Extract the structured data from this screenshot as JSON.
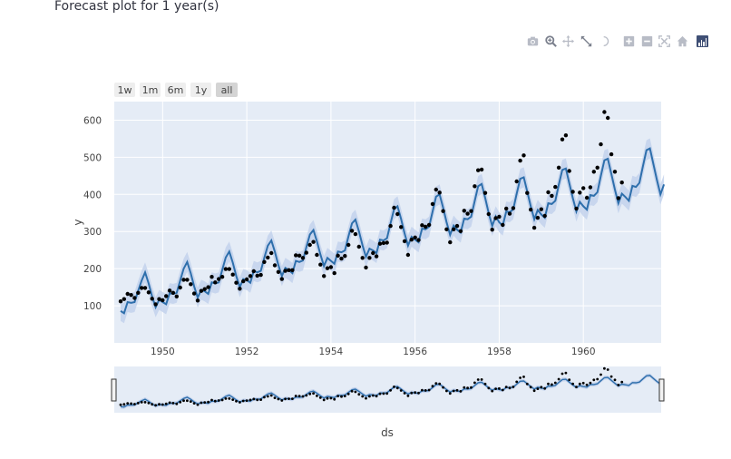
{
  "page": {
    "title": "Forecast plot for 1 year(s)"
  },
  "modebar": {
    "buttons": [
      "camera-icon",
      "zoom-icon",
      "pan-icon",
      "box-select-icon",
      "lasso-icon",
      "zoom-in-icon",
      "zoom-out-icon",
      "autoscale-icon",
      "home-icon"
    ],
    "logo": "plotly-logo-icon"
  },
  "range_selector": {
    "buttons": [
      {
        "label": "1w",
        "active": false
      },
      {
        "label": "1m",
        "active": false
      },
      {
        "label": "6m",
        "active": false
      },
      {
        "label": "1y",
        "active": false
      },
      {
        "label": "all",
        "active": true
      }
    ]
  },
  "colors": {
    "plot_bg": "#e5ecf6",
    "line": "#2e6fac",
    "band": "#c3d2ec",
    "points": "#000000",
    "button_bg": "#eeeeee",
    "button_active_bg": "#d4d4d4"
  },
  "chart_data": {
    "type": "line",
    "title": "Forecast plot for 1 year(s)",
    "xlabel": "ds",
    "ylabel": "y",
    "xlim": [
      1948.85,
      1961.85
    ],
    "ylim": [
      0,
      650
    ],
    "xticks": [
      1950,
      1952,
      1954,
      1956,
      1958,
      1960
    ],
    "xtick_labels": [
      "1950",
      "1952",
      "1954",
      "1956",
      "1958",
      "1960"
    ],
    "yticks": [
      100,
      200,
      300,
      400,
      500,
      600
    ],
    "ytick_labels": [
      "100",
      "200",
      "300",
      "400",
      "500",
      "600"
    ],
    "grid": true,
    "legend": "none",
    "series": [
      {
        "kind": "actual",
        "start_year": 1949,
        "start_month": 1,
        "values": [
          112,
          118,
          132,
          129,
          121,
          135,
          148,
          148,
          136,
          119,
          104,
          118,
          115,
          126,
          141,
          135,
          125,
          149,
          170,
          170,
          158,
          133,
          114,
          140,
          145,
          150,
          178,
          163,
          172,
          178,
          199,
          199,
          184,
          162,
          146,
          166,
          171,
          180,
          193,
          181,
          183,
          218,
          230,
          242,
          209,
          191,
          172,
          194,
          196,
          196,
          236,
          235,
          229,
          243,
          264,
          272,
          237,
          211,
          180,
          201,
          204,
          188,
          235,
          227,
          234,
          264,
          302,
          293,
          259,
          229,
          203,
          229,
          242,
          233,
          267,
          269,
          270,
          315,
          364,
          347,
          312,
          274,
          237,
          278,
          284,
          277,
          317,
          313,
          318,
          374,
          413,
          405,
          355,
          306,
          271,
          306,
          315,
          301,
          356,
          348,
          355,
          422,
          465,
          467,
          404,
          347,
          305,
          336,
          340,
          318,
          362,
          348,
          363,
          435,
          491,
          505,
          404,
          359,
          310,
          337,
          360,
          342,
          406,
          396,
          420,
          472,
          548,
          559,
          463,
          407,
          362,
          405,
          417,
          391,
          419,
          461,
          472,
          535,
          622,
          606,
          508,
          461,
          390,
          432
        ]
      },
      {
        "kind": "forecast",
        "start_year": 1949,
        "start_month": 1,
        "values": [
          86,
          80,
          110,
          108,
          110,
          140,
          168,
          190,
          160,
          125,
          96,
          116,
          110,
          104,
          134,
          132,
          135,
          168,
          200,
          218,
          188,
          152,
          122,
          143,
          139,
          132,
          163,
          160,
          163,
          197,
          230,
          246,
          216,
          180,
          150,
          172,
          169,
          162,
          194,
          190,
          194,
          229,
          262,
          276,
          246,
          210,
          180,
          202,
          196,
          188,
          221,
          218,
          222,
          258,
          292,
          304,
          274,
          238,
          207,
          229,
          221,
          213,
          246,
          244,
          249,
          287,
          322,
          332,
          300,
          263,
          232,
          254,
          249,
          242,
          278,
          276,
          282,
          322,
          360,
          368,
          334,
          295,
          262,
          286,
          278,
          271,
          308,
          306,
          313,
          354,
          394,
          400,
          364,
          325,
          291,
          316,
          305,
          297,
          335,
          333,
          340,
          382,
          422,
          428,
          390,
          350,
          315,
          341,
          325,
          316,
          354,
          352,
          360,
          402,
          442,
          446,
          408,
          368,
          333,
          358,
          346,
          337,
          376,
          374,
          383,
          426,
          466,
          470,
          430,
          390,
          354,
          380,
          368,
          359,
          398,
          396,
          406,
          450,
          492,
          496,
          455,
          413,
          376,
          402,
          393,
          383,
          423,
          420,
          431,
          476,
          519,
          524,
          481,
          438,
          400,
          427
        ],
        "band_halfwidth": 27
      }
    ]
  }
}
